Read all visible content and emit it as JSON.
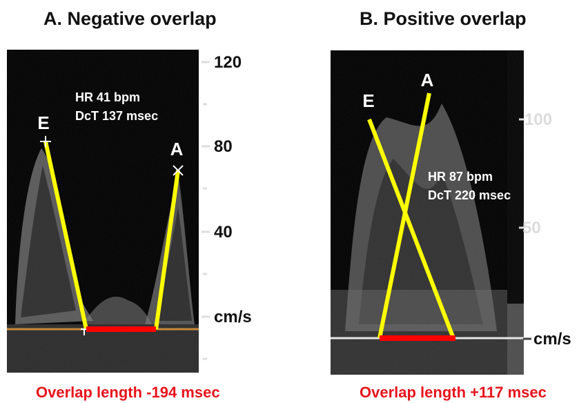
{
  "panel_a": {
    "title": "A. Negative overlap",
    "e_label": "E",
    "a_label": "A",
    "info_hr": "HR 41 bpm",
    "info_dct": "DcT 137 msec",
    "scale": [
      "120",
      "80",
      "40",
      "cm/s"
    ],
    "overlap_text": "Overlap length -194 msec"
  },
  "panel_b": {
    "title": "B. Positive overlap",
    "e_label": "E",
    "a_label": "A",
    "info_hr": "HR 87 bpm",
    "info_dct": "DcT 220 msec",
    "scale": [
      "100",
      "50",
      "cm/s"
    ],
    "overlap_text": "Overlap length +117 msec"
  },
  "colors": {
    "e_a_lines": "#ffff00",
    "overlap_bar": "#ff0000",
    "baseline_a": "#c98a3a",
    "caption": "#e8141c"
  }
}
